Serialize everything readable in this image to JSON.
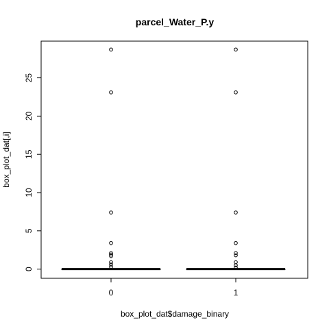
{
  "chart_data": {
    "type": "boxplot",
    "title": "parcel_Water_P.y",
    "xlabel": "box_plot_dat$damage_binary",
    "ylabel": "box_plot_dat[,i]",
    "categories": [
      "0",
      "1"
    ],
    "ylim": [
      -1.2,
      29.8
    ],
    "yticks": [
      0,
      5,
      10,
      15,
      20,
      25
    ],
    "ytick_labels": [
      "0",
      "5",
      "10",
      "15",
      "20",
      "25"
    ],
    "grid": false,
    "legend": "none",
    "series": [
      {
        "category": "0",
        "min": 0,
        "q1": 0,
        "median": 0,
        "q3": 0,
        "max": 0,
        "outliers": [
          28.7,
          23.1,
          7.4,
          3.4,
          2.1,
          1.9,
          1.7,
          0.9,
          0.6,
          0.3
        ]
      },
      {
        "category": "1",
        "min": 0,
        "q1": 0,
        "median": 0,
        "q3": 0,
        "max": 0,
        "outliers": [
          28.7,
          23.1,
          7.4,
          3.4,
          2.1,
          1.8,
          0.9,
          0.5,
          0.2
        ]
      }
    ]
  }
}
